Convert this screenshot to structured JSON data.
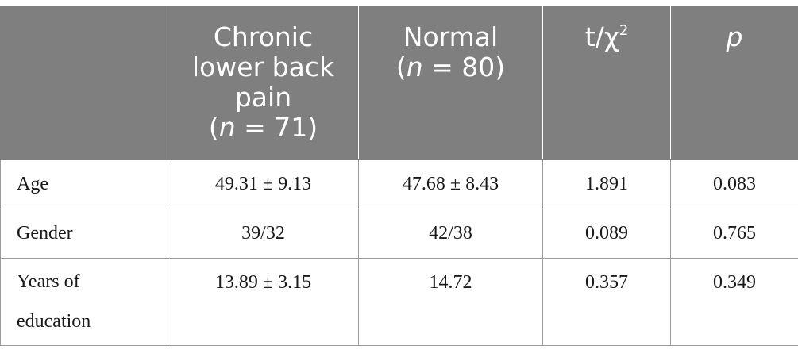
{
  "table": {
    "headers": {
      "label": "",
      "group1": {
        "lines": [
          "Chronic",
          "lower back",
          "pain"
        ],
        "n_prefix": "(",
        "n_var": "n",
        "n_value": " = 71)"
      },
      "group2": {
        "line1": "Normal",
        "n_prefix": "(",
        "n_var": "n",
        "n_value": " = 80)"
      },
      "stat": {
        "base": "t/χ",
        "sup": "2"
      },
      "pvalue": "p"
    },
    "rows": [
      {
        "label": "Age",
        "group1": "49.31 ± 9.13",
        "group2": "47.68 ± 8.43",
        "stat": "1.891",
        "p": "0.083"
      },
      {
        "label": "Gender",
        "group1": "39/32",
        "group2": "42/38",
        "stat": "0.089",
        "p": "0.765"
      },
      {
        "label_lines": [
          "Years of",
          "education"
        ],
        "group1": "13.89 ± 3.15",
        "group2": "14.72",
        "stat": "0.357",
        "p": "0.349"
      }
    ]
  }
}
